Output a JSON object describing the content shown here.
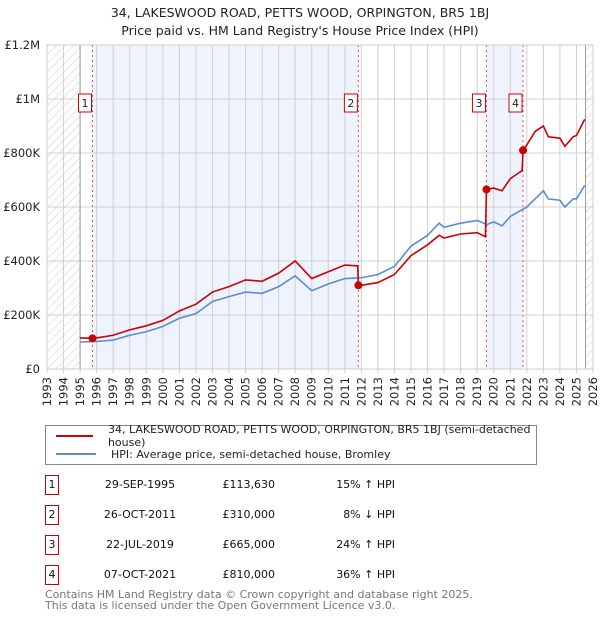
{
  "title": "34, LAKESWOOD ROAD, PETTS WOOD, ORPINGTON, BR5 1BJ",
  "subtitle": "Price paid vs. HM Land Registry's House Price Index (HPI)",
  "chart_data": {
    "type": "line",
    "xlim": [
      1993,
      2026
    ],
    "ylim": [
      0,
      1200000
    ],
    "x_ticks": [
      "1993",
      "1994",
      "1995",
      "1996",
      "1997",
      "1998",
      "1999",
      "2000",
      "2001",
      "2002",
      "2003",
      "2004",
      "2005",
      "2006",
      "2007",
      "2008",
      "2009",
      "2010",
      "2011",
      "2012",
      "2013",
      "2014",
      "2015",
      "2016",
      "2017",
      "2018",
      "2019",
      "2020",
      "2021",
      "2022",
      "2023",
      "2024",
      "2025",
      "2026"
    ],
    "y_ticks": [
      {
        "v": 0,
        "label": "£0"
      },
      {
        "v": 200000,
        "label": "£200K"
      },
      {
        "v": 400000,
        "label": "£400K"
      },
      {
        "v": 600000,
        "label": "£600K"
      },
      {
        "v": 800000,
        "label": "£800K"
      },
      {
        "v": 1000000,
        "label": "£1M"
      },
      {
        "v": 1200000,
        "label": "£1.2M"
      }
    ],
    "hatched_ranges": [
      [
        1993,
        1995
      ],
      [
        2025.55,
        2026
      ]
    ],
    "shaded_ranges": [
      [
        1995.75,
        2011.82
      ],
      [
        2019.56,
        2021.77
      ]
    ],
    "series": [
      {
        "name": "34, LAKESWOOD ROAD, PETTS WOOD, ORPINGTON, BR5 1BJ (semi-detached house)",
        "color": "#cc0000",
        "points": [
          [
            1995,
            115000
          ],
          [
            1995.75,
            113630
          ],
          [
            1996,
            115000
          ],
          [
            1997,
            125000
          ],
          [
            1998,
            145000
          ],
          [
            1999,
            160000
          ],
          [
            2000,
            180000
          ],
          [
            2001,
            215000
          ],
          [
            2002,
            240000
          ],
          [
            2003,
            285000
          ],
          [
            2004,
            305000
          ],
          [
            2005,
            330000
          ],
          [
            2006,
            325000
          ],
          [
            2007,
            355000
          ],
          [
            2008,
            400000
          ],
          [
            2009,
            335000
          ],
          [
            2010,
            360000
          ],
          [
            2011,
            385000
          ],
          [
            2011.78,
            382000
          ],
          [
            2011.82,
            310000
          ],
          [
            2012,
            310000
          ],
          [
            2013,
            320000
          ],
          [
            2014,
            350000
          ],
          [
            2015,
            420000
          ],
          [
            2016,
            460000
          ],
          [
            2016.7,
            495000
          ],
          [
            2017,
            485000
          ],
          [
            2018,
            500000
          ],
          [
            2019,
            505000
          ],
          [
            2019.5,
            490000
          ],
          [
            2019.56,
            665000
          ],
          [
            2020,
            670000
          ],
          [
            2020.5,
            660000
          ],
          [
            2021,
            705000
          ],
          [
            2021.72,
            735000
          ],
          [
            2021.77,
            810000
          ],
          [
            2022,
            830000
          ],
          [
            2022.5,
            880000
          ],
          [
            2023,
            900000
          ],
          [
            2023.3,
            860000
          ],
          [
            2024,
            855000
          ],
          [
            2024.3,
            825000
          ],
          [
            2024.8,
            860000
          ],
          [
            2025,
            865000
          ],
          [
            2025.5,
            925000
          ]
        ]
      },
      {
        "name": "HPI: Average price, semi-detached house, Bromley",
        "color": "#5b8bd0",
        "points": [
          [
            1995,
            100000
          ],
          [
            1996,
            102000
          ],
          [
            1997,
            107000
          ],
          [
            1998,
            125000
          ],
          [
            1999,
            138000
          ],
          [
            2000,
            158000
          ],
          [
            2001,
            188000
          ],
          [
            2002,
            205000
          ],
          [
            2003,
            250000
          ],
          [
            2004,
            268000
          ],
          [
            2005,
            285000
          ],
          [
            2006,
            280000
          ],
          [
            2007,
            305000
          ],
          [
            2008,
            345000
          ],
          [
            2009,
            290000
          ],
          [
            2010,
            315000
          ],
          [
            2011,
            335000
          ],
          [
            2012,
            338000
          ],
          [
            2013,
            350000
          ],
          [
            2014,
            380000
          ],
          [
            2015,
            455000
          ],
          [
            2016,
            495000
          ],
          [
            2016.7,
            540000
          ],
          [
            2017,
            525000
          ],
          [
            2018,
            540000
          ],
          [
            2019,
            550000
          ],
          [
            2019.6,
            535000
          ],
          [
            2020,
            545000
          ],
          [
            2020.5,
            530000
          ],
          [
            2021,
            565000
          ],
          [
            2022,
            600000
          ],
          [
            2023,
            660000
          ],
          [
            2023.3,
            630000
          ],
          [
            2024,
            625000
          ],
          [
            2024.3,
            600000
          ],
          [
            2024.8,
            630000
          ],
          [
            2025,
            630000
          ],
          [
            2025.5,
            680000
          ]
        ]
      }
    ],
    "sales": [
      {
        "label": "1",
        "x": 1995.75,
        "price": 113630
      },
      {
        "label": "2",
        "x": 2011.82,
        "price": 310000
      },
      {
        "label": "3",
        "x": 2019.56,
        "price": 665000
      },
      {
        "label": "4",
        "x": 2021.77,
        "price": 810000
      }
    ]
  },
  "legend": {
    "property": "34, LAKESWOOD ROAD, PETTS WOOD, ORPINGTON, BR5 1BJ (semi-detached house)",
    "hpi": "HPI: Average price, semi-detached house, Bromley"
  },
  "transactions": [
    {
      "num": "1",
      "date": "29-SEP-1995",
      "price": "£113,630",
      "hpi": "15% ↑ HPI"
    },
    {
      "num": "2",
      "date": "26-OCT-2011",
      "price": "£310,000",
      "hpi": "8% ↓ HPI"
    },
    {
      "num": "3",
      "date": "22-JUL-2019",
      "price": "£665,000",
      "hpi": "24% ↑ HPI"
    },
    {
      "num": "4",
      "date": "07-OCT-2021",
      "price": "£810,000",
      "hpi": "36% ↑ HPI"
    }
  ],
  "footer": {
    "line1": "Contains HM Land Registry data © Crown copyright and database right 2025.",
    "line2": "This data is licensed under the Open Government Licence v3.0."
  }
}
